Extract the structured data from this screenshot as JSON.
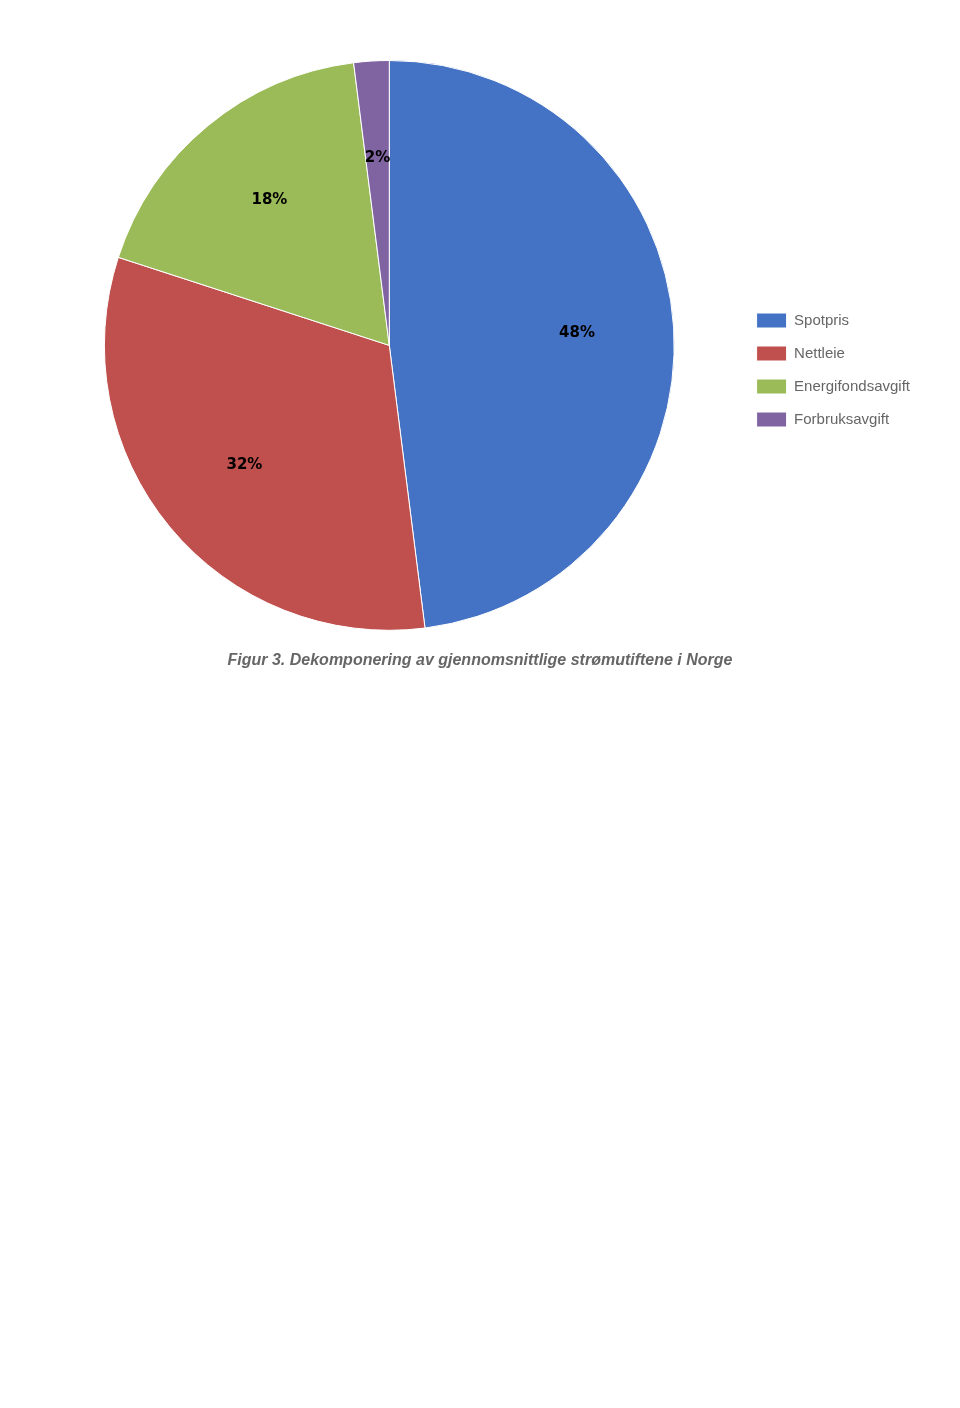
{
  "chart_data": {
    "type": "pie",
    "title": "Figur 3. Dekomponering av gjennomsnittlige strømutiftene i Norge",
    "categories": [
      "Spotpris",
      "Nettleie",
      "Energifondsavgift",
      "Forbruksavgift"
    ],
    "values": [
      48,
      32,
      18,
      2
    ],
    "value_labels": [
      "48%",
      "32%",
      "18%",
      "2%"
    ],
    "colors": [
      "#4472c4",
      "#c0504d",
      "#9bbb59",
      "#8064a2"
    ],
    "data_labels": true,
    "legend": "right"
  }
}
